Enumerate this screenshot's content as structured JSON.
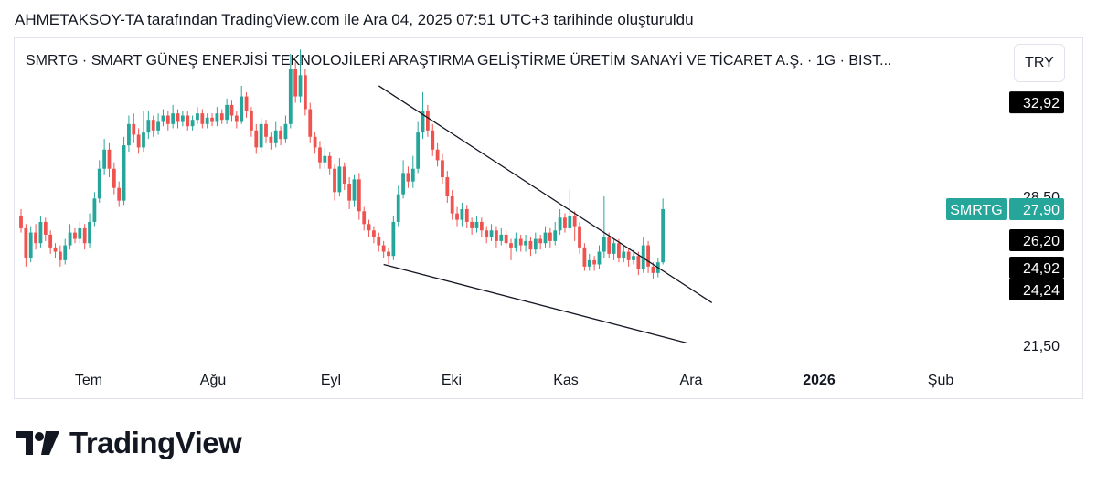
{
  "header": {
    "caption": "AHMETAKSOY-TA tarafından TradingView.com ile Ara 04, 2025 07:51 UTC+3 tarihinde oluşturuldu"
  },
  "chart_header": {
    "symbol_title": "SMRTG · SMART GÜNEŞ ENERJİSİ TEKNOLOJİLERİ ARAŞTIRMA GELİŞTİRME ÜRETİM SANAYİ VE TİCARET A.Ş. · 1G · BIST...",
    "currency": "TRY"
  },
  "footer": {
    "brand": "TradingView"
  },
  "colors": {
    "up": "#26a69a",
    "down": "#ef5350",
    "trendline": "#131722",
    "text": "#131722",
    "grid_label": "#131722"
  },
  "chart_data": {
    "type": "candlestick",
    "symbol": "SMRTG",
    "timeframe": "1G",
    "last_price": 27.9,
    "x_labels": [
      "Tem",
      "Ağu",
      "Eyl",
      "Eki",
      "Kas",
      "Ara",
      "2026",
      "Şub"
    ],
    "y_ticks": [
      {
        "label": "28,50",
        "value": 28.5
      },
      {
        "label": "21,50",
        "value": 21.5
      }
    ],
    "price_markers": [
      {
        "label": "32,92",
        "value": 32.92,
        "style": "black"
      },
      {
        "label": "27,90",
        "value": 27.9,
        "style": "green",
        "name": "SMRTG"
      },
      {
        "label": "26,20",
        "value": 26.2,
        "style": "black"
      },
      {
        "label": "24,92",
        "value": 24.92,
        "style": "black"
      },
      {
        "label": "24,24",
        "value": 24.24,
        "style": "black"
      }
    ],
    "candles": [
      [
        27.6,
        27.0,
        27.9,
        26.8
      ],
      [
        27.0,
        25.6,
        27.2,
        25.2
      ],
      [
        25.6,
        26.8,
        27.1,
        25.4
      ],
      [
        26.8,
        26.3,
        27.2,
        26.0
      ],
      [
        26.3,
        27.3,
        27.6,
        26.1
      ],
      [
        27.3,
        26.7,
        27.5,
        26.4
      ],
      [
        26.7,
        26.1,
        26.9,
        25.8
      ],
      [
        26.1,
        25.9,
        26.3,
        25.6
      ],
      [
        25.9,
        25.5,
        26.2,
        25.2
      ],
      [
        25.5,
        26.2,
        26.5,
        25.3
      ],
      [
        26.2,
        26.8,
        27.2,
        26.0
      ],
      [
        26.8,
        26.5,
        27.0,
        26.3
      ],
      [
        26.5,
        27.0,
        27.3,
        26.3
      ],
      [
        27.0,
        26.3,
        27.2,
        26.0
      ],
      [
        26.3,
        27.3,
        27.7,
        26.1
      ],
      [
        27.3,
        28.4,
        28.7,
        27.1
      ],
      [
        28.4,
        29.8,
        30.2,
        28.2
      ],
      [
        29.8,
        30.7,
        31.2,
        29.5
      ],
      [
        30.7,
        29.8,
        31.0,
        29.4
      ],
      [
        29.8,
        28.9,
        30.1,
        28.6
      ],
      [
        28.9,
        28.3,
        29.2,
        28.0
      ],
      [
        28.3,
        30.9,
        31.3,
        28.1
      ],
      [
        30.9,
        31.9,
        32.3,
        30.6
      ],
      [
        31.9,
        31.4,
        32.4,
        31.0
      ],
      [
        31.4,
        30.8,
        31.7,
        30.5
      ],
      [
        30.8,
        31.5,
        32.5,
        30.6
      ],
      [
        31.5,
        32.1,
        32.5,
        31.2
      ],
      [
        32.1,
        31.6,
        32.3,
        31.3
      ],
      [
        31.6,
        32.0,
        32.4,
        31.4
      ],
      [
        32.0,
        32.3,
        32.6,
        31.8
      ],
      [
        32.3,
        31.9,
        32.5,
        31.6
      ],
      [
        31.9,
        32.4,
        32.8,
        31.7
      ],
      [
        32.4,
        32.0,
        32.6,
        31.7
      ],
      [
        32.0,
        32.3,
        32.5,
        31.8
      ],
      [
        32.3,
        31.8,
        32.5,
        31.6
      ],
      [
        31.8,
        32.1,
        32.3,
        31.6
      ],
      [
        32.1,
        32.4,
        32.7,
        31.9
      ],
      [
        32.4,
        31.9,
        32.6,
        31.7
      ],
      [
        31.9,
        32.2,
        32.4,
        31.7
      ],
      [
        32.2,
        32.0,
        32.4,
        31.8
      ],
      [
        32.0,
        32.4,
        32.7,
        31.8
      ],
      [
        32.4,
        32.1,
        32.6,
        31.9
      ],
      [
        32.1,
        32.8,
        33.1,
        31.9
      ],
      [
        32.8,
        32.3,
        33.0,
        32.0
      ],
      [
        32.3,
        32.0,
        32.5,
        31.7
      ],
      [
        32.0,
        33.2,
        33.7,
        31.9
      ],
      [
        33.2,
        32.5,
        33.4,
        32.2
      ],
      [
        32.5,
        31.6,
        32.7,
        31.3
      ],
      [
        31.6,
        30.8,
        31.9,
        30.5
      ],
      [
        30.8,
        31.9,
        32.2,
        30.6
      ],
      [
        31.9,
        31.3,
        32.1,
        31.0
      ],
      [
        31.3,
        31.0,
        31.5,
        30.7
      ],
      [
        31.0,
        31.6,
        32.0,
        30.8
      ],
      [
        31.6,
        31.2,
        31.8,
        30.9
      ],
      [
        31.2,
        31.9,
        32.3,
        31.0
      ],
      [
        31.9,
        34.5,
        35.2,
        31.7
      ],
      [
        34.5,
        33.2,
        34.8,
        32.9
      ],
      [
        33.2,
        34.2,
        35.4,
        32.9
      ],
      [
        34.2,
        32.6,
        34.5,
        32.3
      ],
      [
        32.6,
        31.3,
        32.9,
        31.0
      ],
      [
        31.3,
        30.8,
        31.5,
        30.5
      ],
      [
        30.8,
        30.1,
        31.1,
        29.8
      ],
      [
        30.1,
        30.4,
        30.8,
        29.8
      ],
      [
        30.4,
        29.8,
        30.6,
        29.5
      ],
      [
        29.8,
        28.7,
        30.0,
        28.3
      ],
      [
        28.7,
        29.9,
        30.3,
        28.5
      ],
      [
        29.9,
        29.1,
        30.1,
        28.8
      ],
      [
        29.1,
        28.3,
        29.4,
        27.9
      ],
      [
        28.3,
        29.3,
        29.5,
        28.0
      ],
      [
        29.3,
        27.8,
        29.6,
        27.4
      ],
      [
        27.8,
        27.2,
        28.0,
        26.9
      ],
      [
        27.2,
        26.9,
        27.4,
        26.6
      ],
      [
        26.9,
        26.6,
        27.1,
        26.3
      ],
      [
        26.6,
        26.2,
        26.8,
        25.9
      ],
      [
        26.2,
        25.9,
        26.4,
        25.6
      ],
      [
        25.9,
        25.7,
        26.1,
        25.3
      ],
      [
        25.7,
        27.3,
        27.6,
        25.5
      ],
      [
        27.3,
        28.6,
        29.0,
        27.1
      ],
      [
        28.6,
        29.6,
        30.2,
        28.4
      ],
      [
        29.6,
        29.2,
        29.9,
        28.9
      ],
      [
        29.2,
        29.8,
        30.4,
        28.9
      ],
      [
        29.8,
        31.5,
        32.0,
        29.6
      ],
      [
        31.5,
        32.5,
        33.4,
        31.2
      ],
      [
        32.5,
        31.6,
        32.8,
        31.3
      ],
      [
        31.6,
        30.7,
        31.9,
        30.4
      ],
      [
        30.7,
        30.2,
        31.0,
        29.9
      ],
      [
        30.2,
        29.4,
        30.5,
        29.1
      ],
      [
        29.4,
        28.5,
        29.7,
        28.2
      ],
      [
        28.5,
        27.7,
        28.8,
        27.4
      ],
      [
        27.7,
        27.4,
        28.0,
        27.1
      ],
      [
        27.4,
        27.9,
        28.2,
        27.1
      ],
      [
        27.9,
        27.3,
        28.1,
        27.0
      ],
      [
        27.3,
        27.0,
        27.5,
        26.7
      ],
      [
        27.0,
        27.3,
        27.6,
        26.8
      ],
      [
        27.3,
        26.9,
        27.5,
        26.6
      ],
      [
        26.9,
        26.6,
        27.1,
        26.3
      ],
      [
        26.6,
        26.9,
        27.2,
        26.4
      ],
      [
        26.9,
        26.4,
        27.1,
        26.1
      ],
      [
        26.4,
        26.7,
        27.0,
        26.2
      ],
      [
        26.7,
        26.3,
        26.9,
        26.0
      ],
      [
        26.3,
        26.1,
        26.5,
        25.5
      ],
      [
        26.1,
        26.5,
        26.8,
        25.9
      ],
      [
        26.5,
        26.2,
        26.7,
        25.9
      ],
      [
        26.2,
        26.4,
        26.7,
        25.9
      ],
      [
        26.4,
        26.0,
        26.6,
        25.7
      ],
      [
        26.0,
        26.5,
        26.8,
        25.8
      ],
      [
        26.5,
        26.3,
        26.7,
        26.0
      ],
      [
        26.3,
        26.8,
        27.1,
        26.1
      ],
      [
        26.8,
        26.4,
        27.0,
        26.1
      ],
      [
        26.4,
        26.9,
        27.3,
        26.2
      ],
      [
        26.9,
        27.5,
        27.9,
        26.7
      ],
      [
        27.5,
        27.0,
        27.7,
        26.8
      ],
      [
        27.0,
        27.6,
        28.8,
        26.9
      ],
      [
        27.6,
        27.1,
        27.8,
        26.4
      ],
      [
        27.1,
        26.1,
        27.3,
        25.8
      ],
      [
        26.1,
        25.2,
        26.3,
        25.0
      ],
      [
        25.2,
        25.5,
        25.8,
        25.0
      ],
      [
        25.5,
        25.3,
        25.7,
        25.0
      ],
      [
        25.3,
        25.9,
        26.2,
        25.1
      ],
      [
        25.9,
        26.6,
        28.5,
        25.6
      ],
      [
        26.6,
        25.8,
        26.8,
        25.6
      ],
      [
        25.8,
        26.3,
        26.5,
        25.5
      ],
      [
        26.3,
        25.6,
        26.5,
        25.4
      ],
      [
        25.6,
        25.9,
        26.2,
        25.4
      ],
      [
        25.9,
        25.5,
        26.1,
        25.2
      ],
      [
        25.5,
        25.7,
        26.0,
        25.3
      ],
      [
        25.7,
        25.1,
        25.9,
        24.8
      ],
      [
        25.1,
        26.2,
        26.6,
        24.9
      ],
      [
        26.2,
        25.2,
        26.4,
        24.9
      ],
      [
        25.2,
        24.9,
        25.4,
        24.6
      ],
      [
        24.9,
        25.4,
        25.6,
        24.7
      ],
      [
        25.4,
        27.9,
        28.4,
        25.3
      ]
    ],
    "trendlines": [
      {
        "name": "upper",
        "from": {
          "candle": 73,
          "price": 33.7
        },
        "to": {
          "candle": 141,
          "price": 23.5
        }
      },
      {
        "name": "lower",
        "from": {
          "candle": 74,
          "price": 25.3
        },
        "to": {
          "candle": 136,
          "price": 21.6
        }
      }
    ]
  }
}
